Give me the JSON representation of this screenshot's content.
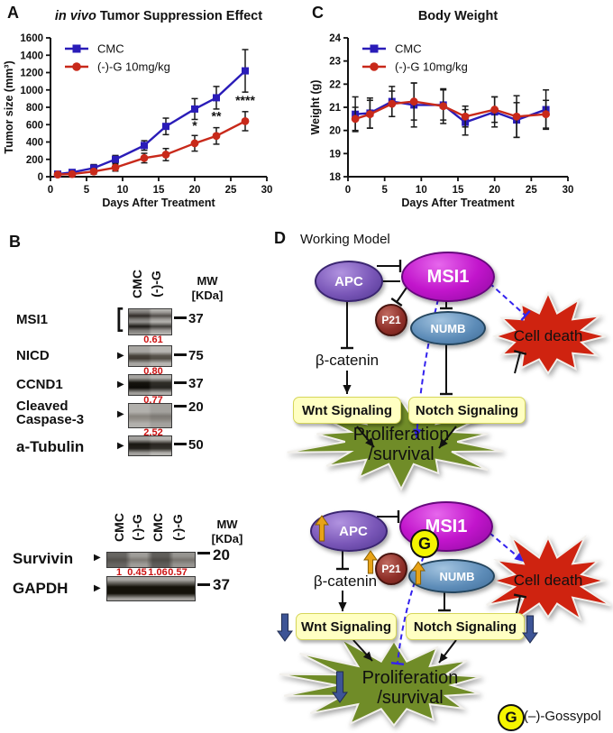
{
  "figure": {
    "panels": {
      "a": "A",
      "b": "B",
      "c": "C",
      "d": "D"
    }
  },
  "colors": {
    "series_blue": "#2a1cb8",
    "series_red": "#c8291a",
    "ratio_red": "#cc1111",
    "msi1": "#c215cc",
    "apc": "#7a57b8",
    "p21": "#8e2f28",
    "numb": "#5d8cb8",
    "cell_death": "#cf2310",
    "proliferation": "#708c28",
    "signal_box": "#ffffc2",
    "signal_box_border": "#d6d65a",
    "dashed_blue": "#3322ee",
    "up_arrow": "#e8a317",
    "down_arrow": "#3d5496"
  },
  "chart_data": [
    {
      "id": "tumor",
      "type": "line",
      "title": "in vivo Tumor Suppression Effect",
      "title_parts": [
        {
          "text": "in vivo",
          "italic": true
        },
        {
          "text": " Tumor Suppression Effect",
          "italic": false
        }
      ],
      "xlabel": "Days After Treatment",
      "ylabel": "Tumor size (mm³)",
      "xlim": [
        0,
        30
      ],
      "ylim": [
        0,
        1600
      ],
      "xticks": [
        0,
        5,
        10,
        15,
        20,
        25,
        30
      ],
      "yticks": [
        0,
        200,
        400,
        600,
        800,
        1000,
        1200,
        1400,
        1600
      ],
      "grid": false,
      "legend_position": "top-left",
      "x": [
        1,
        3,
        6,
        9,
        13,
        16,
        20,
        23,
        27
      ],
      "series": [
        {
          "name": "CMC",
          "color": "#2a1cb8",
          "marker": "square",
          "values": [
            30,
            50,
            100,
            200,
            360,
            580,
            780,
            910,
            1220
          ],
          "errors": [
            25,
            30,
            40,
            45,
            55,
            95,
            120,
            130,
            245
          ]
        },
        {
          "name": "(-)-G 10mg/kg",
          "color": "#c8291a",
          "marker": "circle",
          "values": [
            25,
            30,
            60,
            105,
            215,
            255,
            385,
            470,
            640
          ],
          "errors": [
            20,
            20,
            30,
            40,
            55,
            70,
            90,
            95,
            110
          ]
        }
      ],
      "annotations": [
        {
          "x": 20,
          "y": 540,
          "text": "*"
        },
        {
          "x": 23,
          "y": 650,
          "text": "**"
        },
        {
          "x": 27,
          "y": 830,
          "text": "****"
        }
      ]
    },
    {
      "id": "weight",
      "type": "line",
      "title": "Body Weight",
      "title_parts": [
        {
          "text": "Body Weight",
          "italic": false
        }
      ],
      "xlabel": "Days After Treatment",
      "ylabel": "Weight (g)",
      "xlim": [
        0,
        30
      ],
      "ylim": [
        18,
        24
      ],
      "xticks": [
        0,
        5,
        10,
        15,
        20,
        25,
        30
      ],
      "yticks": [
        18,
        19,
        20,
        21,
        22,
        23,
        24
      ],
      "grid": false,
      "legend_position": "top-left",
      "x": [
        1,
        3,
        6,
        9,
        13,
        16,
        20,
        23,
        27
      ],
      "series": [
        {
          "name": "CMC",
          "color": "#2a1cb8",
          "marker": "square",
          "values": [
            20.7,
            20.75,
            21.25,
            21.1,
            21.1,
            20.35,
            20.8,
            20.45,
            20.9
          ],
          "errors": [
            0.75,
            0.65,
            0.65,
            0.95,
            0.65,
            0.55,
            0.65,
            0.75,
            0.85
          ]
        },
        {
          "name": "(-)-G 10mg/kg",
          "color": "#c8291a",
          "marker": "circle",
          "values": [
            20.5,
            20.7,
            21.15,
            21.25,
            21.05,
            20.6,
            20.9,
            20.6,
            20.7
          ],
          "errors": [
            0.5,
            0.6,
            0.55,
            0.8,
            0.75,
            0.45,
            0.55,
            0.9,
            0.6
          ]
        }
      ],
      "annotations": []
    }
  ],
  "western_blots": {
    "upper": {
      "lanes": [
        "CMC",
        "(-)-G"
      ],
      "mw_header_line1": "MW",
      "mw_header_line2": "[KDa]",
      "rows": [
        {
          "protein": "MSI1",
          "mw": "37",
          "ratio": "0.61",
          "marker_glyph": "["
        },
        {
          "protein": "NICD",
          "mw": "75",
          "ratio": "0.80",
          "marker_glyph": "▶"
        },
        {
          "protein": "CCND1",
          "mw": "37",
          "ratio": "0.77",
          "marker_glyph": "▶"
        },
        {
          "protein": "Cleaved Caspase-3",
          "mw": "20",
          "ratio": "2.52",
          "marker_glyph": "▶"
        },
        {
          "protein": "a-Tubulin",
          "mw": "50",
          "ratio": "",
          "marker_glyph": "▶"
        }
      ]
    },
    "lower": {
      "lanes": [
        "CMC",
        "(-)-G",
        "CMC",
        "(-)-G"
      ],
      "mw_header_line1": "MW",
      "mw_header_line2": "[KDa]",
      "rows": [
        {
          "protein": "Survivin",
          "mw": "20",
          "marker_glyph": "▶",
          "ratios": [
            "1",
            "0.45",
            "1.06",
            "0.57"
          ]
        },
        {
          "protein": "GAPDH",
          "mw": "37",
          "marker_glyph": "▶",
          "ratios": []
        }
      ]
    }
  },
  "model": {
    "title": "Working Model",
    "nodes": {
      "apc": "APC",
      "msi1": "MSI1",
      "p21": "P21",
      "numb": "NUMB",
      "beta_catenin": "β-catenin",
      "wnt": "Wnt Signaling",
      "notch": "Notch Signaling",
      "cell_death": "Cell death",
      "prolif_line1": "Proliferation",
      "prolif_line2": "/survival"
    },
    "gossypol_symbol": "G",
    "gossypol_legend": "(–)-Gossypol"
  }
}
